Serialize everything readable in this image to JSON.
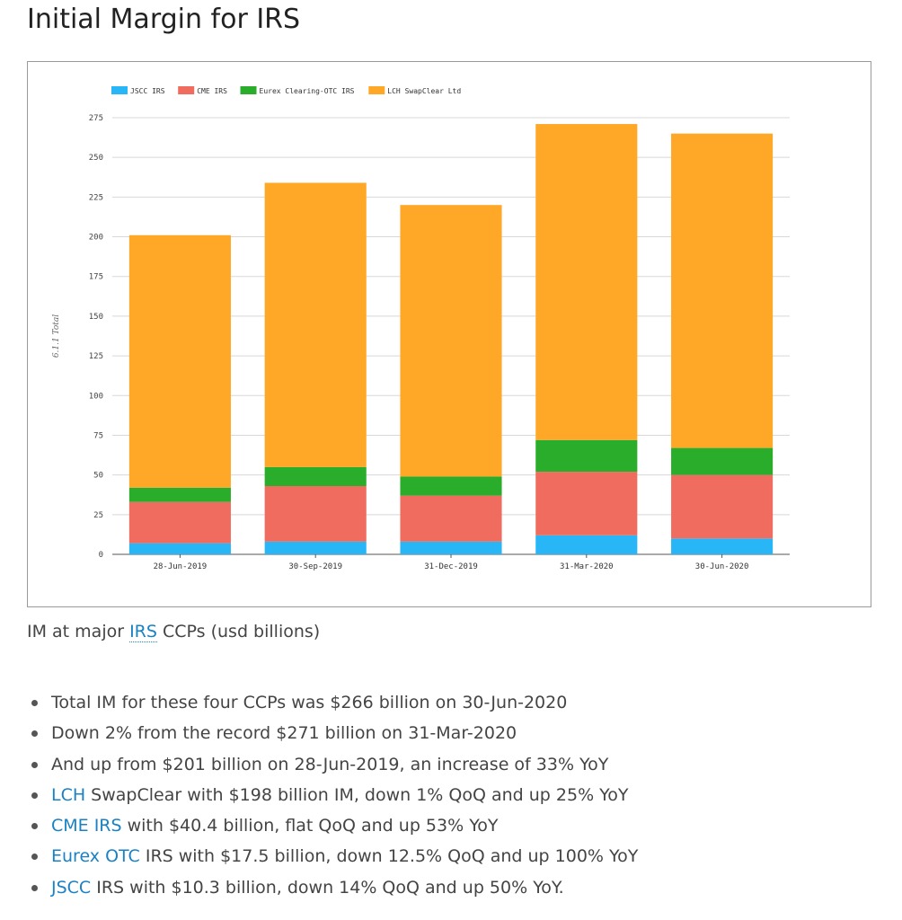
{
  "page": {
    "title": "Initial Margin for IRS"
  },
  "caption": {
    "before": "IM at major ",
    "link": "IRS",
    "after": " CCPs (usd billions)"
  },
  "bullets": [
    {
      "link": "",
      "text": "Total IM for these four CCPs was $266 billion on 30-Jun-2020"
    },
    {
      "link": "",
      "text": "Down 2% from the record $271 billion on 31-Mar-2020"
    },
    {
      "link": "",
      "text": "And up from $201 billion on 28-Jun-2019, an increase of 33% YoY"
    },
    {
      "link": "LCH",
      "text": " SwapClear with $198 billion IM, down 1% QoQ and up 25% YoY"
    },
    {
      "link": "CME IRS",
      "text": " with $40.4 billion, flat QoQ and up 53% YoY"
    },
    {
      "link": "Eurex OTC",
      "text": " IRS with $17.5 billion, down 12.5% QoQ and up 100% YoY"
    },
    {
      "link": "JSCC",
      "text": " IRS with $10.3 billion, down 14% QoQ and up 50% YoY."
    }
  ],
  "colors": {
    "link": "#1a82c4",
    "grid": "#d8d8d8",
    "axis": "#555555"
  },
  "chart_data": {
    "type": "bar",
    "stacked": true,
    "categories": [
      "28-Jun-2019",
      "30-Sep-2019",
      "31-Dec-2019",
      "31-Mar-2020",
      "30-Jun-2020"
    ],
    "series": [
      {
        "name": "JSCC IRS",
        "color": "#29b6f6",
        "values": [
          7,
          8,
          8,
          12,
          10
        ]
      },
      {
        "name": "CME IRS",
        "color": "#ef6c5f",
        "values": [
          26,
          35,
          29,
          40,
          40
        ]
      },
      {
        "name": "Eurex Clearing-OTC IRS",
        "color": "#2aad2a",
        "values": [
          9,
          12,
          12,
          20,
          17
        ]
      },
      {
        "name": "LCH SwapClear Ltd",
        "color": "#ffa726",
        "values": [
          159,
          179,
          171,
          199,
          198
        ]
      }
    ],
    "title": "",
    "xlabel": "",
    "ylabel": "6.1.1 Total",
    "ylim": [
      0,
      275
    ],
    "yticks": [
      0,
      25,
      50,
      75,
      100,
      125,
      150,
      175,
      200,
      225,
      250,
      275
    ],
    "grid": true,
    "legend": "top-left"
  }
}
